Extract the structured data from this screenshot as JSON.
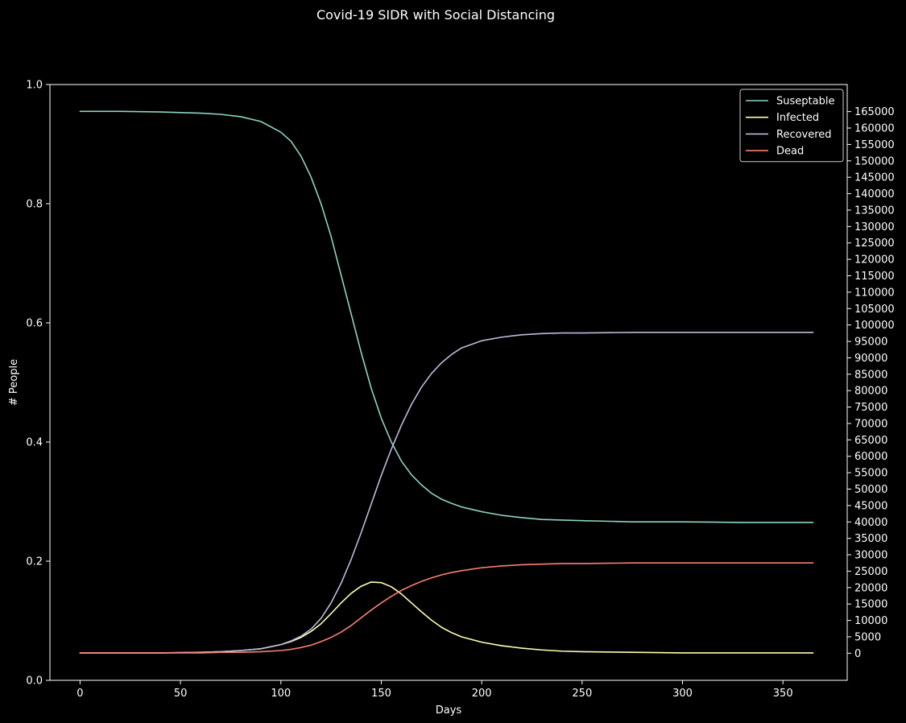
{
  "chart_data": {
    "type": "line",
    "title": "Covid-19 SIDR with Social Distancing",
    "xlabel": "Days",
    "ylabel": "# People",
    "xlim": [
      -15,
      382
    ],
    "ylim": [
      0,
      1
    ],
    "right_ylim": [
      -8250,
      173250
    ],
    "x_ticks": [
      0,
      50,
      100,
      150,
      200,
      250,
      300,
      350
    ],
    "y_ticks": [
      "0.0",
      "0.2",
      "0.4",
      "0.6",
      "0.8",
      "1.0"
    ],
    "right_y_ticks": [
      "0",
      "5000",
      "10000",
      "15000",
      "20000",
      "25000",
      "30000",
      "35000",
      "40000",
      "45000",
      "50000",
      "55000",
      "60000",
      "65000",
      "70000",
      "75000",
      "80000",
      "85000",
      "90000",
      "95000",
      "100000",
      "105000",
      "110000",
      "115000",
      "120000",
      "125000",
      "130000",
      "135000",
      "140000",
      "145000",
      "150000",
      "155000",
      "160000",
      "165000"
    ],
    "grid": false,
    "legend_position": "top-right",
    "series": [
      {
        "name": "Suseptable",
        "color": "#8dd3c7",
        "points": [
          [
            0,
            0.955
          ],
          [
            20,
            0.955
          ],
          [
            40,
            0.954
          ],
          [
            60,
            0.952
          ],
          [
            70,
            0.95
          ],
          [
            80,
            0.946
          ],
          [
            90,
            0.938
          ],
          [
            100,
            0.92
          ],
          [
            105,
            0.905
          ],
          [
            110,
            0.88
          ],
          [
            115,
            0.845
          ],
          [
            120,
            0.8
          ],
          [
            125,
            0.745
          ],
          [
            130,
            0.68
          ],
          [
            135,
            0.615
          ],
          [
            140,
            0.55
          ],
          [
            145,
            0.49
          ],
          [
            150,
            0.44
          ],
          [
            155,
            0.4
          ],
          [
            160,
            0.368
          ],
          [
            165,
            0.345
          ],
          [
            170,
            0.328
          ],
          [
            175,
            0.314
          ],
          [
            180,
            0.304
          ],
          [
            185,
            0.297
          ],
          [
            190,
            0.291
          ],
          [
            200,
            0.283
          ],
          [
            210,
            0.277
          ],
          [
            220,
            0.273
          ],
          [
            230,
            0.27
          ],
          [
            240,
            0.269
          ],
          [
            250,
            0.268
          ],
          [
            275,
            0.266
          ],
          [
            300,
            0.266
          ],
          [
            330,
            0.265
          ],
          [
            365,
            0.265
          ]
        ]
      },
      {
        "name": "Infected",
        "color": "#ffffb3",
        "points": [
          [
            0,
            0.046
          ],
          [
            20,
            0.046
          ],
          [
            40,
            0.046
          ],
          [
            60,
            0.047
          ],
          [
            70,
            0.048
          ],
          [
            80,
            0.05
          ],
          [
            90,
            0.053
          ],
          [
            100,
            0.06
          ],
          [
            105,
            0.065
          ],
          [
            110,
            0.072
          ],
          [
            115,
            0.082
          ],
          [
            120,
            0.095
          ],
          [
            125,
            0.112
          ],
          [
            130,
            0.13
          ],
          [
            135,
            0.146
          ],
          [
            140,
            0.158
          ],
          [
            145,
            0.165
          ],
          [
            150,
            0.164
          ],
          [
            155,
            0.157
          ],
          [
            160,
            0.145
          ],
          [
            165,
            0.13
          ],
          [
            170,
            0.115
          ],
          [
            175,
            0.101
          ],
          [
            180,
            0.089
          ],
          [
            185,
            0.08
          ],
          [
            190,
            0.073
          ],
          [
            200,
            0.064
          ],
          [
            210,
            0.058
          ],
          [
            220,
            0.054
          ],
          [
            230,
            0.051
          ],
          [
            240,
            0.049
          ],
          [
            250,
            0.048
          ],
          [
            275,
            0.047
          ],
          [
            300,
            0.046
          ],
          [
            330,
            0.046
          ],
          [
            365,
            0.046
          ]
        ]
      },
      {
        "name": "Recovered",
        "color": "#bebada",
        "points": [
          [
            0,
            0.046
          ],
          [
            20,
            0.046
          ],
          [
            40,
            0.046
          ],
          [
            60,
            0.047
          ],
          [
            70,
            0.048
          ],
          [
            80,
            0.05
          ],
          [
            90,
            0.053
          ],
          [
            100,
            0.06
          ],
          [
            105,
            0.066
          ],
          [
            110,
            0.074
          ],
          [
            115,
            0.086
          ],
          [
            120,
            0.104
          ],
          [
            125,
            0.13
          ],
          [
            130,
            0.163
          ],
          [
            135,
            0.203
          ],
          [
            140,
            0.248
          ],
          [
            145,
            0.296
          ],
          [
            150,
            0.344
          ],
          [
            155,
            0.388
          ],
          [
            160,
            0.428
          ],
          [
            165,
            0.463
          ],
          [
            170,
            0.492
          ],
          [
            175,
            0.515
          ],
          [
            180,
            0.533
          ],
          [
            185,
            0.547
          ],
          [
            190,
            0.558
          ],
          [
            200,
            0.57
          ],
          [
            210,
            0.576
          ],
          [
            220,
            0.58
          ],
          [
            230,
            0.582
          ],
          [
            240,
            0.583
          ],
          [
            250,
            0.583
          ],
          [
            275,
            0.584
          ],
          [
            300,
            0.584
          ],
          [
            330,
            0.584
          ],
          [
            365,
            0.584
          ]
        ]
      },
      {
        "name": "Dead",
        "color": "#fb8072",
        "points": [
          [
            0,
            0.046
          ],
          [
            20,
            0.046
          ],
          [
            40,
            0.046
          ],
          [
            60,
            0.046
          ],
          [
            70,
            0.047
          ],
          [
            80,
            0.047
          ],
          [
            90,
            0.048
          ],
          [
            100,
            0.05
          ],
          [
            105,
            0.052
          ],
          [
            110,
            0.055
          ],
          [
            115,
            0.059
          ],
          [
            120,
            0.065
          ],
          [
            125,
            0.072
          ],
          [
            130,
            0.081
          ],
          [
            135,
            0.092
          ],
          [
            140,
            0.105
          ],
          [
            145,
            0.118
          ],
          [
            150,
            0.13
          ],
          [
            155,
            0.141
          ],
          [
            160,
            0.151
          ],
          [
            165,
            0.159
          ],
          [
            170,
            0.166
          ],
          [
            175,
            0.172
          ],
          [
            180,
            0.177
          ],
          [
            185,
            0.181
          ],
          [
            190,
            0.184
          ],
          [
            200,
            0.189
          ],
          [
            210,
            0.192
          ],
          [
            220,
            0.194
          ],
          [
            230,
            0.195
          ],
          [
            240,
            0.196
          ],
          [
            250,
            0.196
          ],
          [
            275,
            0.197
          ],
          [
            300,
            0.197
          ],
          [
            330,
            0.197
          ],
          [
            365,
            0.197
          ]
        ]
      }
    ]
  }
}
